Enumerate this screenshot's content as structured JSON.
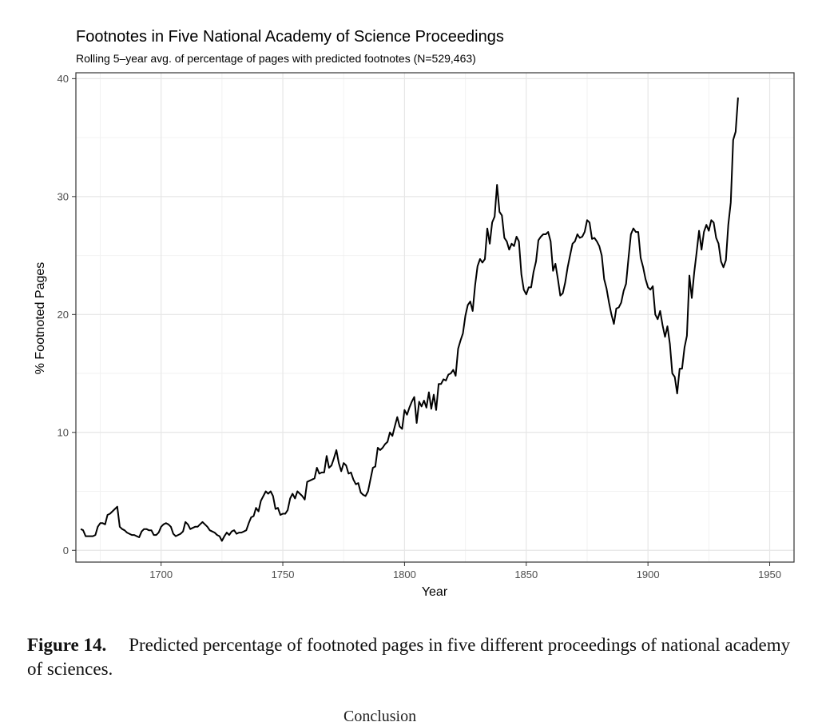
{
  "chart_data": {
    "type": "line",
    "title": "Footnotes in Five National Academy of Science Proceedings",
    "subtitle": "Rolling 5–year avg. of percentage of pages with predicted footnotes (N=529,463)",
    "xlabel": "Year",
    "ylabel": "% Footnoted Pages",
    "xlim": [
      1665,
      1960
    ],
    "ylim": [
      -1,
      40.5
    ],
    "xticks": [
      1700,
      1750,
      1800,
      1850,
      1900,
      1950
    ],
    "yticks": [
      0,
      10,
      20,
      30,
      40
    ],
    "grid": true,
    "series": [
      {
        "name": "Footnoted pages",
        "color": "#000000",
        "points": [
          [
            1667,
            1.8
          ],
          [
            1668,
            1.7
          ],
          [
            1669,
            1.2
          ],
          [
            1670,
            1.2
          ],
          [
            1671,
            1.2
          ],
          [
            1672,
            1.2
          ],
          [
            1673,
            1.3
          ],
          [
            1674,
            2.0
          ],
          [
            1675,
            2.3
          ],
          [
            1676,
            2.3
          ],
          [
            1677,
            2.2
          ],
          [
            1678,
            3.0
          ],
          [
            1679,
            3.1
          ],
          [
            1680,
            3.3
          ],
          [
            1681,
            3.5
          ],
          [
            1682,
            3.7
          ],
          [
            1683,
            2.0
          ],
          [
            1684,
            1.8
          ],
          [
            1685,
            1.7
          ],
          [
            1686,
            1.5
          ],
          [
            1687,
            1.4
          ],
          [
            1688,
            1.3
          ],
          [
            1689,
            1.3
          ],
          [
            1690,
            1.2
          ],
          [
            1691,
            1.1
          ],
          [
            1692,
            1.6
          ],
          [
            1693,
            1.8
          ],
          [
            1694,
            1.8
          ],
          [
            1695,
            1.7
          ],
          [
            1696,
            1.7
          ],
          [
            1697,
            1.3
          ],
          [
            1698,
            1.3
          ],
          [
            1699,
            1.5
          ],
          [
            1700,
            2.0
          ],
          [
            1701,
            2.2
          ],
          [
            1702,
            2.3
          ],
          [
            1703,
            2.2
          ],
          [
            1704,
            2.0
          ],
          [
            1705,
            1.4
          ],
          [
            1706,
            1.2
          ],
          [
            1707,
            1.3
          ],
          [
            1708,
            1.4
          ],
          [
            1709,
            1.6
          ],
          [
            1710,
            2.4
          ],
          [
            1711,
            2.2
          ],
          [
            1712,
            1.8
          ],
          [
            1713,
            1.9
          ],
          [
            1714,
            2.0
          ],
          [
            1715,
            2.0
          ],
          [
            1716,
            2.2
          ],
          [
            1717,
            2.4
          ],
          [
            1718,
            2.2
          ],
          [
            1719,
            2.0
          ],
          [
            1720,
            1.7
          ],
          [
            1721,
            1.6
          ],
          [
            1722,
            1.5
          ],
          [
            1723,
            1.3
          ],
          [
            1724,
            1.2
          ],
          [
            1725,
            0.8
          ],
          [
            1726,
            1.2
          ],
          [
            1727,
            1.5
          ],
          [
            1728,
            1.3
          ],
          [
            1729,
            1.6
          ],
          [
            1730,
            1.7
          ],
          [
            1731,
            1.4
          ],
          [
            1732,
            1.5
          ],
          [
            1733,
            1.5
          ],
          [
            1734,
            1.6
          ],
          [
            1735,
            1.7
          ],
          [
            1736,
            2.3
          ],
          [
            1737,
            2.8
          ],
          [
            1738,
            2.9
          ],
          [
            1739,
            3.6
          ],
          [
            1740,
            3.3
          ],
          [
            1741,
            4.2
          ],
          [
            1742,
            4.6
          ],
          [
            1743,
            5.0
          ],
          [
            1744,
            4.8
          ],
          [
            1745,
            5.0
          ],
          [
            1746,
            4.6
          ],
          [
            1747,
            3.5
          ],
          [
            1748,
            3.6
          ],
          [
            1749,
            3.0
          ],
          [
            1750,
            3.1
          ],
          [
            1751,
            3.1
          ],
          [
            1752,
            3.4
          ],
          [
            1753,
            4.4
          ],
          [
            1754,
            4.8
          ],
          [
            1755,
            4.4
          ],
          [
            1756,
            5.0
          ],
          [
            1757,
            4.8
          ],
          [
            1758,
            4.6
          ],
          [
            1759,
            4.3
          ],
          [
            1760,
            5.8
          ],
          [
            1761,
            5.9
          ],
          [
            1762,
            6.0
          ],
          [
            1763,
            6.1
          ],
          [
            1764,
            7.0
          ],
          [
            1765,
            6.5
          ],
          [
            1766,
            6.6
          ],
          [
            1767,
            6.6
          ],
          [
            1768,
            8.0
          ],
          [
            1769,
            7.0
          ],
          [
            1770,
            7.2
          ],
          [
            1771,
            7.8
          ],
          [
            1772,
            8.5
          ],
          [
            1773,
            7.4
          ],
          [
            1774,
            6.7
          ],
          [
            1775,
            7.4
          ],
          [
            1776,
            7.2
          ],
          [
            1777,
            6.5
          ],
          [
            1778,
            6.6
          ],
          [
            1779,
            6.0
          ],
          [
            1780,
            5.6
          ],
          [
            1781,
            5.7
          ],
          [
            1782,
            4.9
          ],
          [
            1783,
            4.7
          ],
          [
            1784,
            4.6
          ],
          [
            1785,
            5.0
          ],
          [
            1786,
            6.0
          ],
          [
            1787,
            7.0
          ],
          [
            1788,
            7.1
          ],
          [
            1789,
            8.7
          ],
          [
            1790,
            8.5
          ],
          [
            1791,
            8.7
          ],
          [
            1792,
            9.0
          ],
          [
            1793,
            9.2
          ],
          [
            1794,
            10.0
          ],
          [
            1795,
            9.7
          ],
          [
            1796,
            10.5
          ],
          [
            1797,
            11.3
          ],
          [
            1798,
            10.5
          ],
          [
            1799,
            10.3
          ],
          [
            1800,
            11.9
          ],
          [
            1801,
            11.5
          ],
          [
            1802,
            12.1
          ],
          [
            1803,
            12.6
          ],
          [
            1804,
            13.0
          ],
          [
            1805,
            10.8
          ],
          [
            1806,
            12.6
          ],
          [
            1807,
            12.2
          ],
          [
            1808,
            12.7
          ],
          [
            1809,
            12.1
          ],
          [
            1810,
            13.4
          ],
          [
            1811,
            12.0
          ],
          [
            1812,
            13.2
          ],
          [
            1813,
            11.9
          ],
          [
            1814,
            14.1
          ],
          [
            1815,
            14.1
          ],
          [
            1816,
            14.5
          ],
          [
            1817,
            14.4
          ],
          [
            1818,
            14.9
          ],
          [
            1819,
            15.0
          ],
          [
            1820,
            15.3
          ],
          [
            1821,
            14.8
          ],
          [
            1822,
            17.1
          ],
          [
            1823,
            17.8
          ],
          [
            1824,
            18.4
          ],
          [
            1825,
            19.9
          ],
          [
            1826,
            20.8
          ],
          [
            1827,
            21.1
          ],
          [
            1828,
            20.3
          ],
          [
            1829,
            22.5
          ],
          [
            1830,
            24.1
          ],
          [
            1831,
            24.7
          ],
          [
            1832,
            24.4
          ],
          [
            1833,
            24.7
          ],
          [
            1834,
            27.3
          ],
          [
            1835,
            26.0
          ],
          [
            1836,
            27.8
          ],
          [
            1837,
            28.3
          ],
          [
            1838,
            31.0
          ],
          [
            1839,
            28.7
          ],
          [
            1840,
            28.4
          ],
          [
            1841,
            26.5
          ],
          [
            1842,
            26.2
          ],
          [
            1843,
            25.5
          ],
          [
            1844,
            26.0
          ],
          [
            1845,
            25.8
          ],
          [
            1846,
            26.6
          ],
          [
            1847,
            26.2
          ],
          [
            1848,
            23.4
          ],
          [
            1849,
            22.1
          ],
          [
            1850,
            21.7
          ],
          [
            1851,
            22.3
          ],
          [
            1852,
            22.3
          ],
          [
            1853,
            23.6
          ],
          [
            1854,
            24.5
          ],
          [
            1855,
            26.3
          ],
          [
            1856,
            26.6
          ],
          [
            1857,
            26.8
          ],
          [
            1858,
            26.8
          ],
          [
            1859,
            27.0
          ],
          [
            1860,
            26.2
          ],
          [
            1861,
            23.7
          ],
          [
            1862,
            24.3
          ],
          [
            1863,
            23.0
          ],
          [
            1864,
            21.6
          ],
          [
            1865,
            21.8
          ],
          [
            1866,
            22.7
          ],
          [
            1867,
            24.0
          ],
          [
            1868,
            25.0
          ],
          [
            1869,
            26.0
          ],
          [
            1870,
            26.2
          ],
          [
            1871,
            26.8
          ],
          [
            1872,
            26.5
          ],
          [
            1873,
            26.6
          ],
          [
            1874,
            27.0
          ],
          [
            1875,
            28.0
          ],
          [
            1876,
            27.8
          ],
          [
            1877,
            26.4
          ],
          [
            1878,
            26.5
          ],
          [
            1879,
            26.2
          ],
          [
            1880,
            25.8
          ],
          [
            1881,
            25.0
          ],
          [
            1882,
            23.0
          ],
          [
            1883,
            22.2
          ],
          [
            1884,
            21.0
          ],
          [
            1885,
            20.0
          ],
          [
            1886,
            19.2
          ],
          [
            1887,
            20.5
          ],
          [
            1888,
            20.6
          ],
          [
            1889,
            21.0
          ],
          [
            1890,
            22.0
          ],
          [
            1891,
            22.6
          ],
          [
            1892,
            24.8
          ],
          [
            1893,
            26.8
          ],
          [
            1894,
            27.3
          ],
          [
            1895,
            27.0
          ],
          [
            1896,
            27.0
          ],
          [
            1897,
            24.8
          ],
          [
            1898,
            24.0
          ],
          [
            1899,
            23.0
          ],
          [
            1900,
            22.3
          ],
          [
            1901,
            22.1
          ],
          [
            1902,
            22.4
          ],
          [
            1903,
            20.0
          ],
          [
            1904,
            19.6
          ],
          [
            1905,
            20.3
          ],
          [
            1906,
            19.1
          ],
          [
            1907,
            18.1
          ],
          [
            1908,
            19.0
          ],
          [
            1909,
            17.5
          ],
          [
            1910,
            15.0
          ],
          [
            1911,
            14.7
          ],
          [
            1912,
            13.3
          ],
          [
            1913,
            15.4
          ],
          [
            1914,
            15.4
          ],
          [
            1915,
            17.2
          ],
          [
            1916,
            18.2
          ],
          [
            1917,
            23.3
          ],
          [
            1918,
            21.4
          ],
          [
            1919,
            23.6
          ],
          [
            1920,
            25.3
          ],
          [
            1921,
            27.1
          ],
          [
            1922,
            25.5
          ],
          [
            1923,
            27.0
          ],
          [
            1924,
            27.6
          ],
          [
            1925,
            27.1
          ],
          [
            1926,
            28.0
          ],
          [
            1927,
            27.8
          ],
          [
            1928,
            26.5
          ],
          [
            1929,
            26.0
          ],
          [
            1930,
            24.5
          ],
          [
            1931,
            24.0
          ],
          [
            1932,
            24.6
          ],
          [
            1933,
            27.6
          ],
          [
            1934,
            29.5
          ],
          [
            1935,
            34.8
          ],
          [
            1936,
            35.5
          ],
          [
            1937,
            38.4
          ]
        ]
      }
    ]
  },
  "caption": {
    "label": "Figure 14.",
    "text": "Predicted percentage of footnoted pages in five different proceedings of national academy of sciences."
  },
  "page_fragment": "Conclusion"
}
